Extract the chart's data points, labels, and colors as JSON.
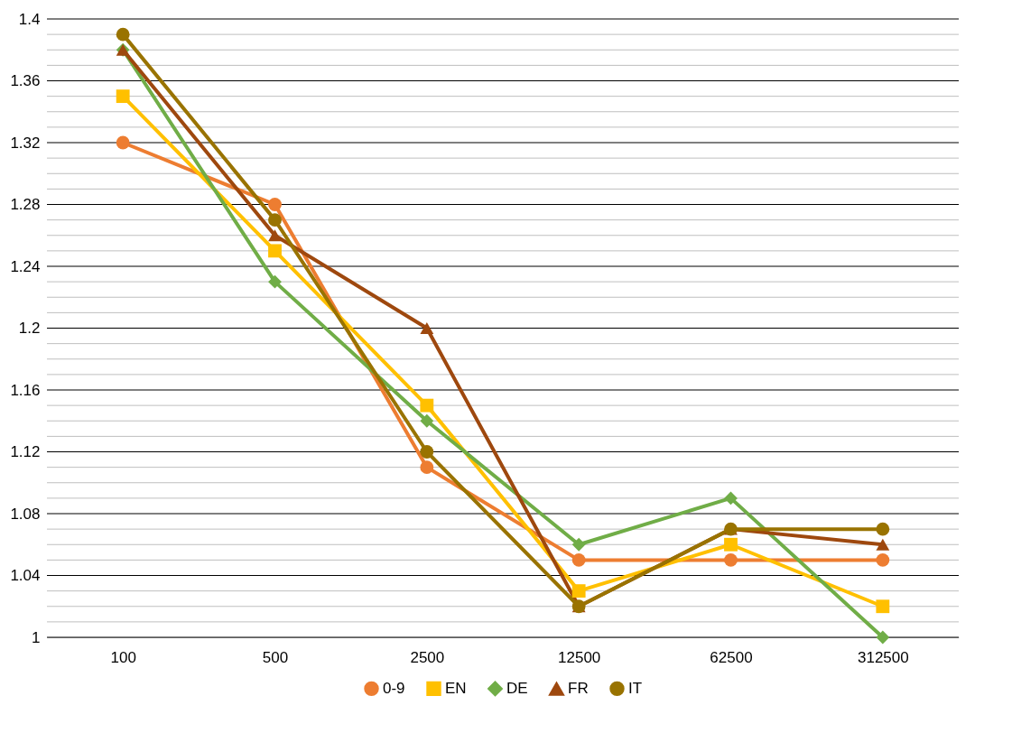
{
  "chart_data": {
    "type": "line",
    "categories": [
      "100",
      "500",
      "2500",
      "12500",
      "62500",
      "312500"
    ],
    "series": [
      {
        "name": "0-9",
        "color": "#ed7d31",
        "marker": "circle",
        "values": [
          1.32,
          1.28,
          1.11,
          1.05,
          1.05,
          1.05
        ]
      },
      {
        "name": "EN",
        "color": "#ffc000",
        "marker": "square",
        "values": [
          1.35,
          1.25,
          1.15,
          1.03,
          1.06,
          1.02
        ]
      },
      {
        "name": "DE",
        "color": "#70ad47",
        "marker": "diamond",
        "values": [
          1.38,
          1.23,
          1.14,
          1.06,
          1.09,
          1.0
        ]
      },
      {
        "name": "FR",
        "color": "#9e480e",
        "marker": "triangle",
        "values": [
          1.38,
          1.26,
          1.2,
          1.02,
          1.07,
          1.06
        ]
      },
      {
        "name": "IT",
        "color": "#997300",
        "marker": "circle",
        "values": [
          1.39,
          1.27,
          1.12,
          1.02,
          1.07,
          1.07
        ]
      }
    ],
    "ylim": [
      1,
      1.4
    ],
    "yticks": [
      1,
      {
        "value": 1.01,
        "label": null
      },
      {
        "value": 1.02,
        "label": null
      },
      {
        "value": 1.03,
        "label": null
      },
      1.04,
      {
        "value": 1.05,
        "label": null
      },
      {
        "value": 1.06,
        "label": null
      },
      {
        "value": 1.07,
        "label": null
      },
      1.08,
      {
        "value": 1.09,
        "label": null
      },
      {
        "value": 1.1,
        "label": null
      },
      {
        "value": 1.11,
        "label": null
      },
      1.12,
      {
        "value": 1.13,
        "label": null
      },
      {
        "value": 1.14,
        "label": null
      },
      {
        "value": 1.15,
        "label": null
      },
      1.16,
      {
        "value": 1.17,
        "label": null
      },
      {
        "value": 1.18,
        "label": null
      },
      {
        "value": 1.19,
        "label": null
      },
      1.2,
      {
        "value": 1.21,
        "label": null
      },
      {
        "value": 1.22,
        "label": null
      },
      {
        "value": 1.23,
        "label": null
      },
      1.24,
      {
        "value": 1.25,
        "label": null
      },
      {
        "value": 1.26,
        "label": null
      },
      {
        "value": 1.27,
        "label": null
      },
      1.28,
      {
        "value": 1.29,
        "label": null
      },
      {
        "value": 1.3,
        "label": null
      },
      {
        "value": 1.31,
        "label": null
      },
      1.32,
      {
        "value": 1.33,
        "label": null
      },
      {
        "value": 1.34,
        "label": null
      },
      {
        "value": 1.35,
        "label": null
      },
      1.36,
      {
        "value": 1.37,
        "label": null
      },
      {
        "value": 1.38,
        "label": null
      },
      {
        "value": 1.39,
        "label": null
      },
      1.4
    ],
    "grid": "y",
    "legend": "bottom",
    "line_style": "solid"
  }
}
